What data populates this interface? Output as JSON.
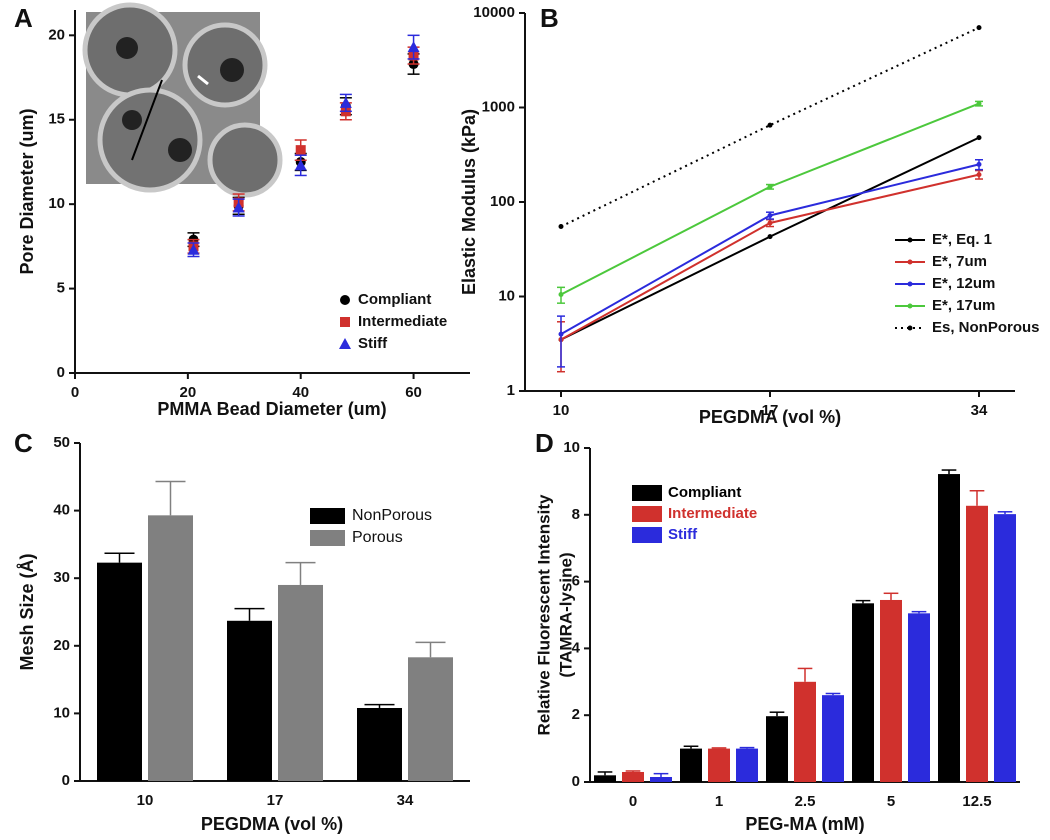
{
  "chart_data": [
    {
      "type": "scatter",
      "panel_label": "A",
      "x_label": "PMMA Bead Diameter (um)",
      "y_label": "Pore Diameter (um)",
      "xlim": [
        0,
        70
      ],
      "xticks": [
        0,
        20,
        40,
        60
      ],
      "ylim": [
        0,
        21.5
      ],
      "yticks": [
        0,
        5,
        10,
        15,
        20
      ],
      "legend": "lower right",
      "series": [
        {
          "name": "Compliant",
          "color": "#000000",
          "marker": "circle",
          "x": [
            21,
            29,
            40,
            48,
            60
          ],
          "values": [
            7.9,
            9.9,
            12.5,
            15.8,
            18.3
          ],
          "errors": [
            0.4,
            0.5,
            0.5,
            0.5,
            0.6
          ]
        },
        {
          "name": "Intermediate",
          "color": "#d0312d",
          "marker": "square",
          "x": [
            21,
            29,
            40,
            48,
            60
          ],
          "values": [
            7.5,
            10.1,
            13.2,
            15.5,
            18.8
          ],
          "errors": [
            0.4,
            0.5,
            0.6,
            0.5,
            0.5
          ]
        },
        {
          "name": "Stiff",
          "color": "#2b2bdc",
          "marker": "triangle",
          "x": [
            21,
            29,
            40,
            48,
            60
          ],
          "values": [
            7.3,
            9.8,
            12.3,
            16.0,
            19.3
          ],
          "errors": [
            0.4,
            0.5,
            0.6,
            0.5,
            0.7
          ]
        }
      ]
    },
    {
      "type": "line",
      "panel_label": "B",
      "x_label": "PEGDMA (vol %)",
      "y_label": "Elastic Modulus (kPa)",
      "categories": [
        "10",
        "17",
        "34"
      ],
      "log_scale": true,
      "ylim": [
        1,
        10000
      ],
      "yticks": [
        1,
        10,
        100,
        1000,
        10000
      ],
      "legend": "lower right",
      "series": [
        {
          "name": "E*, Eq. 1",
          "color": "#000000",
          "values": [
            3.5,
            43,
            480
          ]
        },
        {
          "name": "E*, 7um",
          "color": "#d0312d",
          "values": [
            3.5,
            60,
            195
          ],
          "errors": [
            1.9,
            5,
            20
          ]
        },
        {
          "name": "E*, 12um",
          "color": "#2b2bdc",
          "values": [
            4,
            72,
            250
          ],
          "errors": [
            2.2,
            6,
            30
          ]
        },
        {
          "name": "E*, 17um",
          "color": "#4cc83c",
          "values": [
            10.5,
            145,
            1100
          ],
          "errors": [
            2,
            8,
            60
          ]
        },
        {
          "name": "Es, NonPorous",
          "color": "#000000",
          "line_style": "dotted",
          "values": [
            55,
            650,
            7000
          ]
        }
      ]
    },
    {
      "type": "bar",
      "panel_label": "C",
      "x_label": "PEGDMA (vol %)",
      "y_label": "Mesh Size (Å)",
      "categories": [
        "10",
        "17",
        "34"
      ],
      "ylim": [
        0,
        50
      ],
      "yticks": [
        0,
        10,
        20,
        30,
        40,
        50
      ],
      "legend": "upper right",
      "series": [
        {
          "name": "NonPorous",
          "color": "#000000",
          "values": [
            32.3,
            23.7,
            10.8
          ],
          "errors": [
            1.4,
            1.8,
            0.5
          ]
        },
        {
          "name": "Porous",
          "color": "#808080",
          "values": [
            39.3,
            29.0,
            18.3
          ],
          "errors": [
            5.0,
            3.3,
            2.2
          ]
        }
      ]
    },
    {
      "type": "bar",
      "panel_label": "D",
      "x_label": "PEG-MA (mM)",
      "y_label": [
        "Relative Fluorescent Intensity",
        "(TAMRA-lysine)"
      ],
      "categories": [
        "0",
        "1",
        "2.5",
        "5",
        "12.5"
      ],
      "ylim": [
        0,
        10
      ],
      "yticks": [
        0,
        2,
        4,
        6,
        8,
        10
      ],
      "legend": "upper left",
      "series": [
        {
          "name": "Compliant",
          "color": "#000000",
          "values": [
            0.2,
            1.0,
            1.97,
            5.35,
            9.22
          ],
          "errors": [
            0.1,
            0.07,
            0.12,
            0.08,
            0.12
          ]
        },
        {
          "name": "Intermediate",
          "color": "#d0312d",
          "values": [
            0.3,
            1.0,
            3.0,
            5.45,
            8.27
          ],
          "errors": [
            0.03,
            0.02,
            0.4,
            0.2,
            0.45
          ]
        },
        {
          "name": "Stiff",
          "color": "#2b2bdc",
          "values": [
            0.15,
            1.0,
            2.6,
            5.05,
            8.02
          ],
          "errors": [
            0.1,
            0.03,
            0.05,
            0.05,
            0.07
          ]
        }
      ]
    }
  ]
}
